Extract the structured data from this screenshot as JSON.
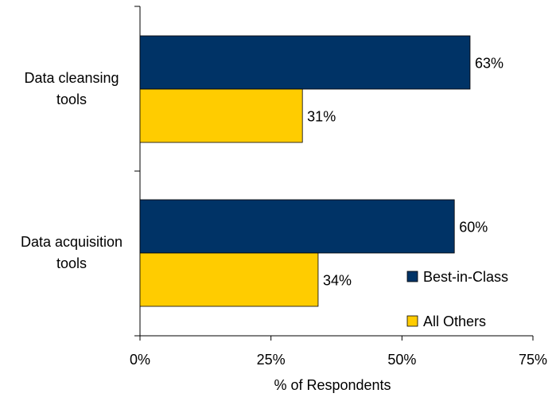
{
  "chart_data": {
    "type": "bar",
    "orientation": "horizontal",
    "categories": [
      "Data cleansing tools",
      "Data acquisition tools"
    ],
    "category_lines": [
      [
        "Data cleansing",
        "tools"
      ],
      [
        "Data acquisition",
        "tools"
      ]
    ],
    "series": [
      {
        "name": "Best-in-Class",
        "values": [
          63,
          60
        ],
        "labels": [
          "63%",
          "60%"
        ],
        "color": "#003366"
      },
      {
        "name": "All Others",
        "values": [
          31,
          34
        ],
        "labels": [
          "31%",
          "34%"
        ],
        "color": "#FFCC00"
      }
    ],
    "xlim": [
      0,
      75
    ],
    "xticks": [
      0,
      25,
      50,
      75
    ],
    "xtick_labels": [
      "0%",
      "25%",
      "50%",
      "75%"
    ],
    "xlabel": "% of Respondents",
    "grid": false,
    "legend": "bottom-right"
  }
}
